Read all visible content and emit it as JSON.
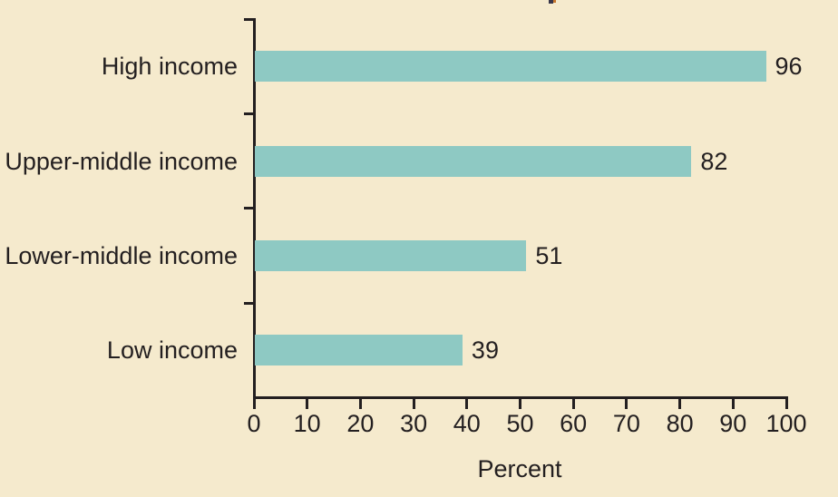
{
  "figure": {
    "background_color": "#f5eacd",
    "bar_color": "#8ec9c3",
    "axis_color": "#231f20",
    "text_color": "#231f20"
  },
  "chart_data": {
    "type": "bar",
    "orientation": "horizontal",
    "categories": [
      "High income",
      "Upper-middle income",
      "Lower-middle income",
      "Low income"
    ],
    "values": [
      96,
      82,
      51,
      39
    ],
    "data_labels": [
      "96",
      "82",
      "51",
      "39"
    ],
    "xlabel": "Percent",
    "xlim": [
      0,
      100
    ],
    "xticks": [
      0,
      10,
      20,
      30,
      40,
      50,
      60,
      70,
      80,
      90,
      100
    ],
    "grid": false,
    "legend": false
  }
}
